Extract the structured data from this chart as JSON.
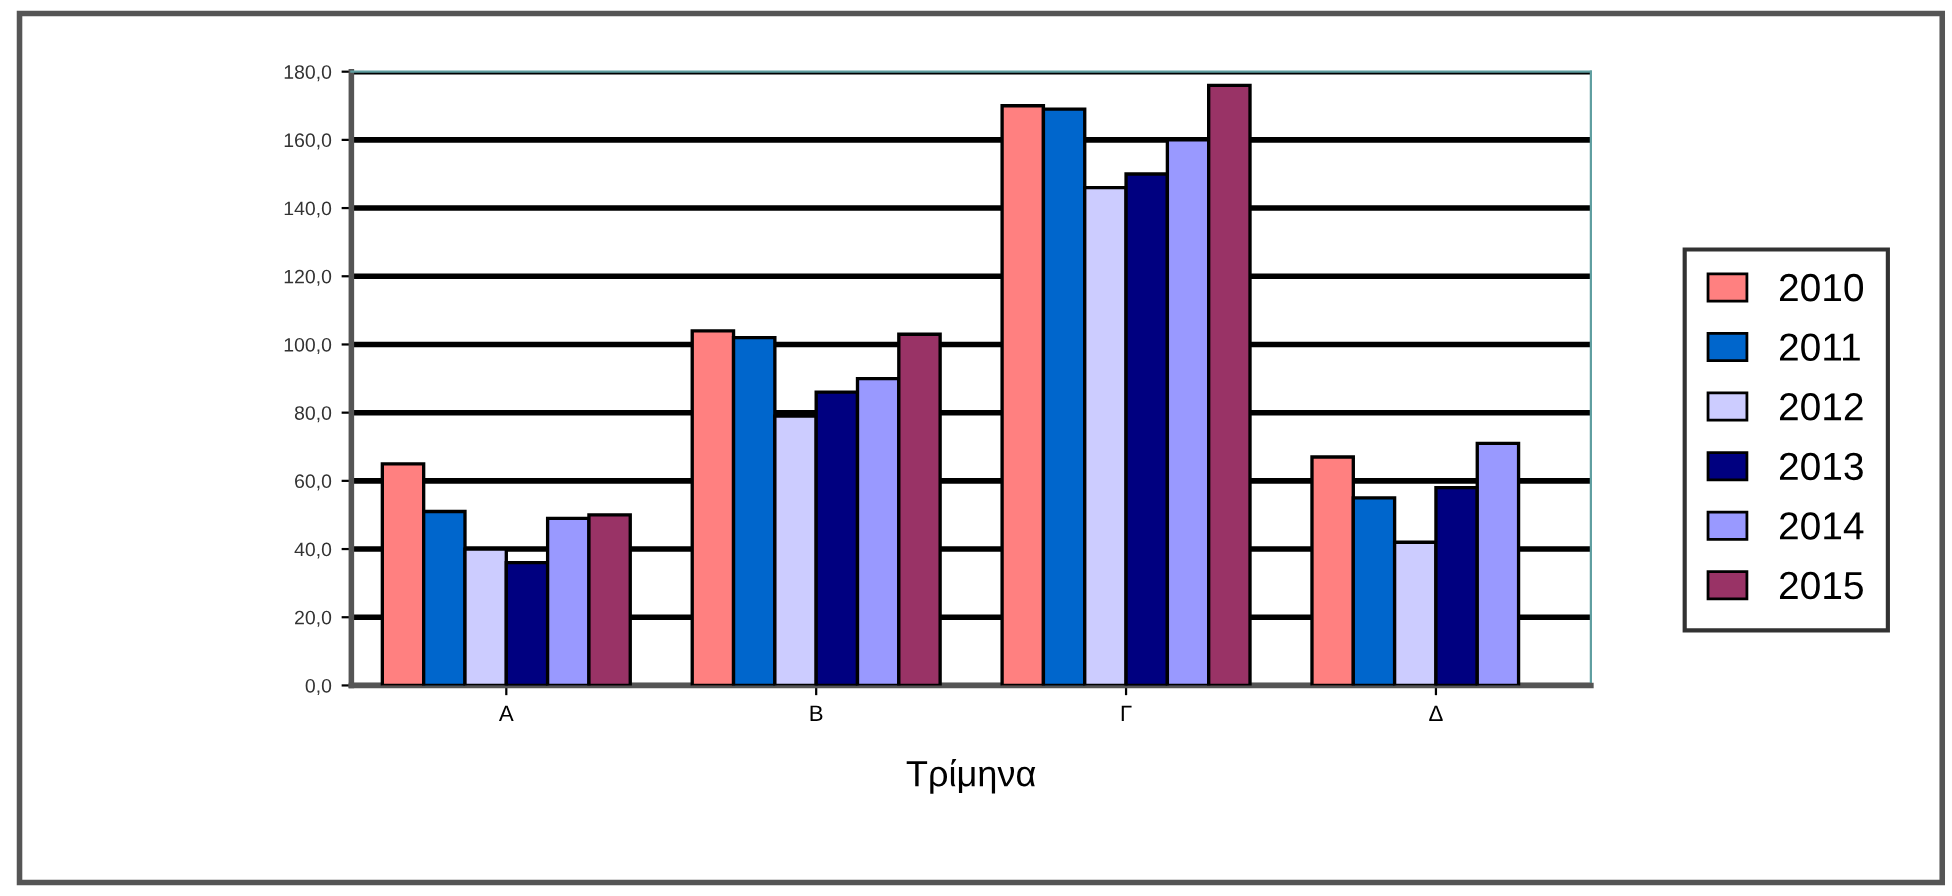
{
  "chart_data": {
    "type": "bar",
    "xlabel": "Τρίμηνα",
    "categories": [
      "Α",
      "Β",
      "Γ",
      "Δ"
    ],
    "series": [
      {
        "name": "2010",
        "color": "#ff8080",
        "values": [
          65,
          104,
          170,
          67
        ]
      },
      {
        "name": "2011",
        "color": "#0066cc",
        "values": [
          51,
          102,
          169,
          55
        ]
      },
      {
        "name": "2012",
        "color": "#ccccff",
        "values": [
          40,
          79,
          146,
          42
        ]
      },
      {
        "name": "2013",
        "color": "#000080",
        "values": [
          36,
          86,
          150,
          58
        ]
      },
      {
        "name": "2014",
        "color": "#9999ff",
        "values": [
          49,
          90,
          160,
          71
        ]
      },
      {
        "name": "2015",
        "color": "#993366",
        "values": [
          50,
          103,
          176,
          null
        ]
      }
    ],
    "ylim": [
      0,
      180
    ],
    "yticks": [
      {
        "value": 0,
        "label": "0,0"
      },
      {
        "value": 20,
        "label": "20,0"
      },
      {
        "value": 40,
        "label": "40,0"
      },
      {
        "value": 60,
        "label": "60,0"
      },
      {
        "value": 80,
        "label": "80,0"
      },
      {
        "value": 100,
        "label": "100,0"
      },
      {
        "value": 120,
        "label": "120,0"
      },
      {
        "value": 140,
        "label": "140,0"
      },
      {
        "value": 160,
        "label": "160,0"
      },
      {
        "value": 180,
        "label": "180,0"
      }
    ],
    "grid": "y",
    "legend": "right"
  }
}
